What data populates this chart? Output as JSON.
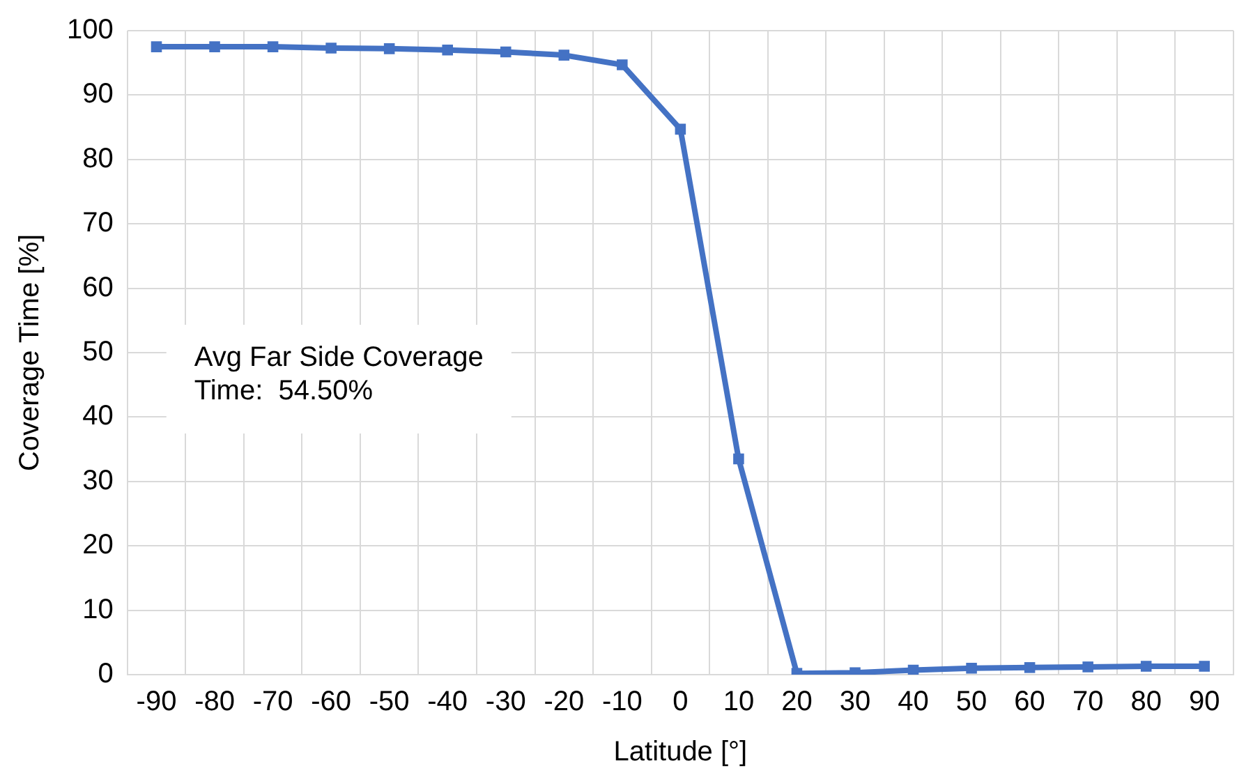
{
  "chart_data": {
    "type": "line",
    "xlabel": "Latitude [°]",
    "ylabel": "Coverage Time [%]",
    "categories": [
      "-90",
      "-80",
      "-70",
      "-60",
      "-50",
      "-40",
      "-30",
      "-20",
      "-10",
      "0",
      "10",
      "20",
      "30",
      "40",
      "50",
      "60",
      "70",
      "80",
      "90"
    ],
    "series": [
      {
        "color": "#4472c4",
        "values": [
          97.5,
          97.5,
          97.5,
          97.3,
          97.2,
          97.0,
          96.7,
          96.2,
          94.7,
          84.7,
          33.5,
          0.2,
          0.3,
          0.7,
          1.0,
          1.1,
          1.2,
          1.3,
          1.3
        ]
      }
    ],
    "ylim": [
      0,
      100
    ],
    "yticks": [
      0,
      10,
      20,
      30,
      40,
      50,
      60,
      70,
      80,
      90,
      100
    ],
    "grid": true,
    "marker": "square",
    "line_style": "solid",
    "annotations": [
      "Avg Far Side Coverage\nTime:  54.50%"
    ]
  }
}
